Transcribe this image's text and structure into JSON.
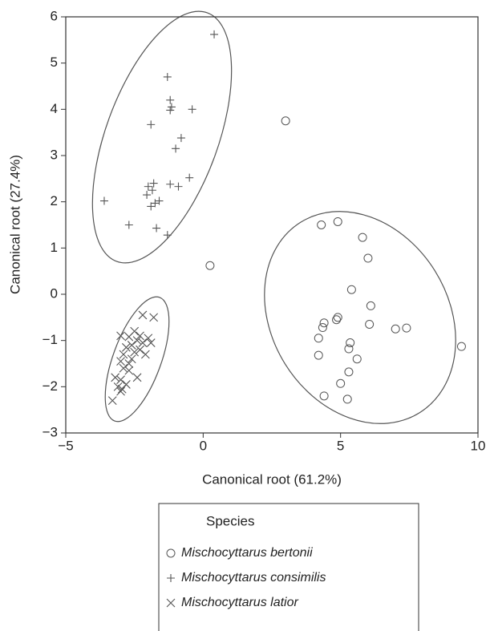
{
  "chart_data": {
    "type": "scatter",
    "x_label": "Canonical root (61.2%)",
    "y_label": "Canonical root (27.4%)",
    "xlim": [
      -5,
      10
    ],
    "ylim": [
      -3,
      6
    ],
    "xticks": [
      {
        "value": -5,
        "label": "−5"
      },
      0,
      5,
      10
    ],
    "yticks": [
      {
        "value": -3,
        "label": "−3"
      },
      {
        "value": -2,
        "label": "−2"
      },
      {
        "value": -1,
        "label": "−1"
      },
      0,
      1,
      2,
      3,
      4,
      5,
      6
    ],
    "legend_title": "Species",
    "series": [
      {
        "name": "Mischocyttarus bertonii",
        "marker": "circle",
        "color": "#555555",
        "x": [
          0.25,
          3.0,
          4.3,
          4.9,
          5.8,
          6.0,
          5.4,
          6.1,
          4.9,
          4.85,
          4.4,
          4.35,
          4.2,
          5.35,
          5.3,
          6.05,
          7.0,
          7.4,
          9.4,
          4.2,
          5.6,
          5.3,
          5.0,
          4.4,
          5.25
        ],
        "values": [
          0.62,
          3.75,
          1.5,
          1.57,
          1.23,
          0.78,
          0.1,
          -0.25,
          -0.5,
          -0.55,
          -0.62,
          -0.72,
          -0.95,
          -1.05,
          -1.18,
          -0.65,
          -0.75,
          -0.73,
          -1.13,
          -1.32,
          -1.4,
          -1.68,
          -1.93,
          -2.2,
          -2.27
        ]
      },
      {
        "name": "Mischocyttarus consimilis",
        "marker": "plus",
        "color": "#555555",
        "x": [
          0.4,
          -1.3,
          -1.2,
          -1.15,
          -1.2,
          -0.4,
          -1.9,
          -0.8,
          -1.0,
          -0.5,
          -1.8,
          -1.2,
          -2.0,
          -0.9,
          -1.85,
          -2.05,
          -1.6,
          -3.6,
          -1.75,
          -1.9,
          -2.7,
          -1.7,
          -1.3
        ],
        "values": [
          5.62,
          4.7,
          4.2,
          4.05,
          3.98,
          4.0,
          3.67,
          3.38,
          3.15,
          2.52,
          2.4,
          2.38,
          2.33,
          2.33,
          2.25,
          2.15,
          2.02,
          2.02,
          1.97,
          1.9,
          1.5,
          1.43,
          1.28
        ]
      },
      {
        "name": "Mischocyttarus latior",
        "marker": "x",
        "color": "#555555",
        "x": [
          -2.2,
          -1.8,
          -2.5,
          -3.0,
          -2.7,
          -2.3,
          -2.0,
          -2.4,
          -2.2,
          -1.9,
          -2.6,
          -2.8,
          -2.3,
          -2.5,
          -2.9,
          -3.0,
          -2.7,
          -2.9,
          -3.2,
          -2.7,
          -2.4,
          -3.0,
          -2.8,
          -3.1,
          -2.95,
          -3.0,
          -3.3,
          -2.6,
          -2.1
        ],
        "values": [
          -0.45,
          -0.5,
          -0.8,
          -0.9,
          -0.92,
          -0.9,
          -0.95,
          -1.0,
          -1.05,
          -1.05,
          -1.1,
          -1.15,
          -1.2,
          -1.25,
          -1.3,
          -1.45,
          -1.5,
          -1.6,
          -1.8,
          -1.65,
          -1.8,
          -1.85,
          -1.95,
          -2.0,
          -2.05,
          -2.1,
          -2.3,
          -1.4,
          -1.3
        ]
      }
    ]
  }
}
